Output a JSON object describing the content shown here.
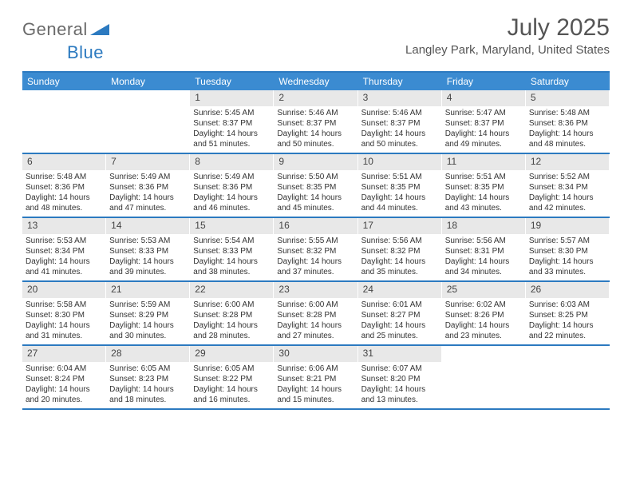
{
  "logo": {
    "general": "General",
    "blue": "Blue"
  },
  "title": "July 2025",
  "location": "Langley Park, Maryland, United States",
  "colors": {
    "header_bg": "#3b8bd1",
    "border": "#2c7ac0",
    "daynum_bg": "#e8e8e8",
    "text": "#333333",
    "title": "#555555"
  },
  "dayNames": [
    "Sunday",
    "Monday",
    "Tuesday",
    "Wednesday",
    "Thursday",
    "Friday",
    "Saturday"
  ],
  "weeks": [
    [
      {
        "empty": true
      },
      {
        "empty": true
      },
      {
        "num": "1",
        "sunrise": "Sunrise: 5:45 AM",
        "sunset": "Sunset: 8:37 PM",
        "daylight": "Daylight: 14 hours and 51 minutes."
      },
      {
        "num": "2",
        "sunrise": "Sunrise: 5:46 AM",
        "sunset": "Sunset: 8:37 PM",
        "daylight": "Daylight: 14 hours and 50 minutes."
      },
      {
        "num": "3",
        "sunrise": "Sunrise: 5:46 AM",
        "sunset": "Sunset: 8:37 PM",
        "daylight": "Daylight: 14 hours and 50 minutes."
      },
      {
        "num": "4",
        "sunrise": "Sunrise: 5:47 AM",
        "sunset": "Sunset: 8:37 PM",
        "daylight": "Daylight: 14 hours and 49 minutes."
      },
      {
        "num": "5",
        "sunrise": "Sunrise: 5:48 AM",
        "sunset": "Sunset: 8:36 PM",
        "daylight": "Daylight: 14 hours and 48 minutes."
      }
    ],
    [
      {
        "num": "6",
        "sunrise": "Sunrise: 5:48 AM",
        "sunset": "Sunset: 8:36 PM",
        "daylight": "Daylight: 14 hours and 48 minutes."
      },
      {
        "num": "7",
        "sunrise": "Sunrise: 5:49 AM",
        "sunset": "Sunset: 8:36 PM",
        "daylight": "Daylight: 14 hours and 47 minutes."
      },
      {
        "num": "8",
        "sunrise": "Sunrise: 5:49 AM",
        "sunset": "Sunset: 8:36 PM",
        "daylight": "Daylight: 14 hours and 46 minutes."
      },
      {
        "num": "9",
        "sunrise": "Sunrise: 5:50 AM",
        "sunset": "Sunset: 8:35 PM",
        "daylight": "Daylight: 14 hours and 45 minutes."
      },
      {
        "num": "10",
        "sunrise": "Sunrise: 5:51 AM",
        "sunset": "Sunset: 8:35 PM",
        "daylight": "Daylight: 14 hours and 44 minutes."
      },
      {
        "num": "11",
        "sunrise": "Sunrise: 5:51 AM",
        "sunset": "Sunset: 8:35 PM",
        "daylight": "Daylight: 14 hours and 43 minutes."
      },
      {
        "num": "12",
        "sunrise": "Sunrise: 5:52 AM",
        "sunset": "Sunset: 8:34 PM",
        "daylight": "Daylight: 14 hours and 42 minutes."
      }
    ],
    [
      {
        "num": "13",
        "sunrise": "Sunrise: 5:53 AM",
        "sunset": "Sunset: 8:34 PM",
        "daylight": "Daylight: 14 hours and 41 minutes."
      },
      {
        "num": "14",
        "sunrise": "Sunrise: 5:53 AM",
        "sunset": "Sunset: 8:33 PM",
        "daylight": "Daylight: 14 hours and 39 minutes."
      },
      {
        "num": "15",
        "sunrise": "Sunrise: 5:54 AM",
        "sunset": "Sunset: 8:33 PM",
        "daylight": "Daylight: 14 hours and 38 minutes."
      },
      {
        "num": "16",
        "sunrise": "Sunrise: 5:55 AM",
        "sunset": "Sunset: 8:32 PM",
        "daylight": "Daylight: 14 hours and 37 minutes."
      },
      {
        "num": "17",
        "sunrise": "Sunrise: 5:56 AM",
        "sunset": "Sunset: 8:32 PM",
        "daylight": "Daylight: 14 hours and 35 minutes."
      },
      {
        "num": "18",
        "sunrise": "Sunrise: 5:56 AM",
        "sunset": "Sunset: 8:31 PM",
        "daylight": "Daylight: 14 hours and 34 minutes."
      },
      {
        "num": "19",
        "sunrise": "Sunrise: 5:57 AM",
        "sunset": "Sunset: 8:30 PM",
        "daylight": "Daylight: 14 hours and 33 minutes."
      }
    ],
    [
      {
        "num": "20",
        "sunrise": "Sunrise: 5:58 AM",
        "sunset": "Sunset: 8:30 PM",
        "daylight": "Daylight: 14 hours and 31 minutes."
      },
      {
        "num": "21",
        "sunrise": "Sunrise: 5:59 AM",
        "sunset": "Sunset: 8:29 PM",
        "daylight": "Daylight: 14 hours and 30 minutes."
      },
      {
        "num": "22",
        "sunrise": "Sunrise: 6:00 AM",
        "sunset": "Sunset: 8:28 PM",
        "daylight": "Daylight: 14 hours and 28 minutes."
      },
      {
        "num": "23",
        "sunrise": "Sunrise: 6:00 AM",
        "sunset": "Sunset: 8:28 PM",
        "daylight": "Daylight: 14 hours and 27 minutes."
      },
      {
        "num": "24",
        "sunrise": "Sunrise: 6:01 AM",
        "sunset": "Sunset: 8:27 PM",
        "daylight": "Daylight: 14 hours and 25 minutes."
      },
      {
        "num": "25",
        "sunrise": "Sunrise: 6:02 AM",
        "sunset": "Sunset: 8:26 PM",
        "daylight": "Daylight: 14 hours and 23 minutes."
      },
      {
        "num": "26",
        "sunrise": "Sunrise: 6:03 AM",
        "sunset": "Sunset: 8:25 PM",
        "daylight": "Daylight: 14 hours and 22 minutes."
      }
    ],
    [
      {
        "num": "27",
        "sunrise": "Sunrise: 6:04 AM",
        "sunset": "Sunset: 8:24 PM",
        "daylight": "Daylight: 14 hours and 20 minutes."
      },
      {
        "num": "28",
        "sunrise": "Sunrise: 6:05 AM",
        "sunset": "Sunset: 8:23 PM",
        "daylight": "Daylight: 14 hours and 18 minutes."
      },
      {
        "num": "29",
        "sunrise": "Sunrise: 6:05 AM",
        "sunset": "Sunset: 8:22 PM",
        "daylight": "Daylight: 14 hours and 16 minutes."
      },
      {
        "num": "30",
        "sunrise": "Sunrise: 6:06 AM",
        "sunset": "Sunset: 8:21 PM",
        "daylight": "Daylight: 14 hours and 15 minutes."
      },
      {
        "num": "31",
        "sunrise": "Sunrise: 6:07 AM",
        "sunset": "Sunset: 8:20 PM",
        "daylight": "Daylight: 14 hours and 13 minutes."
      },
      {
        "empty": true
      },
      {
        "empty": true
      }
    ]
  ]
}
